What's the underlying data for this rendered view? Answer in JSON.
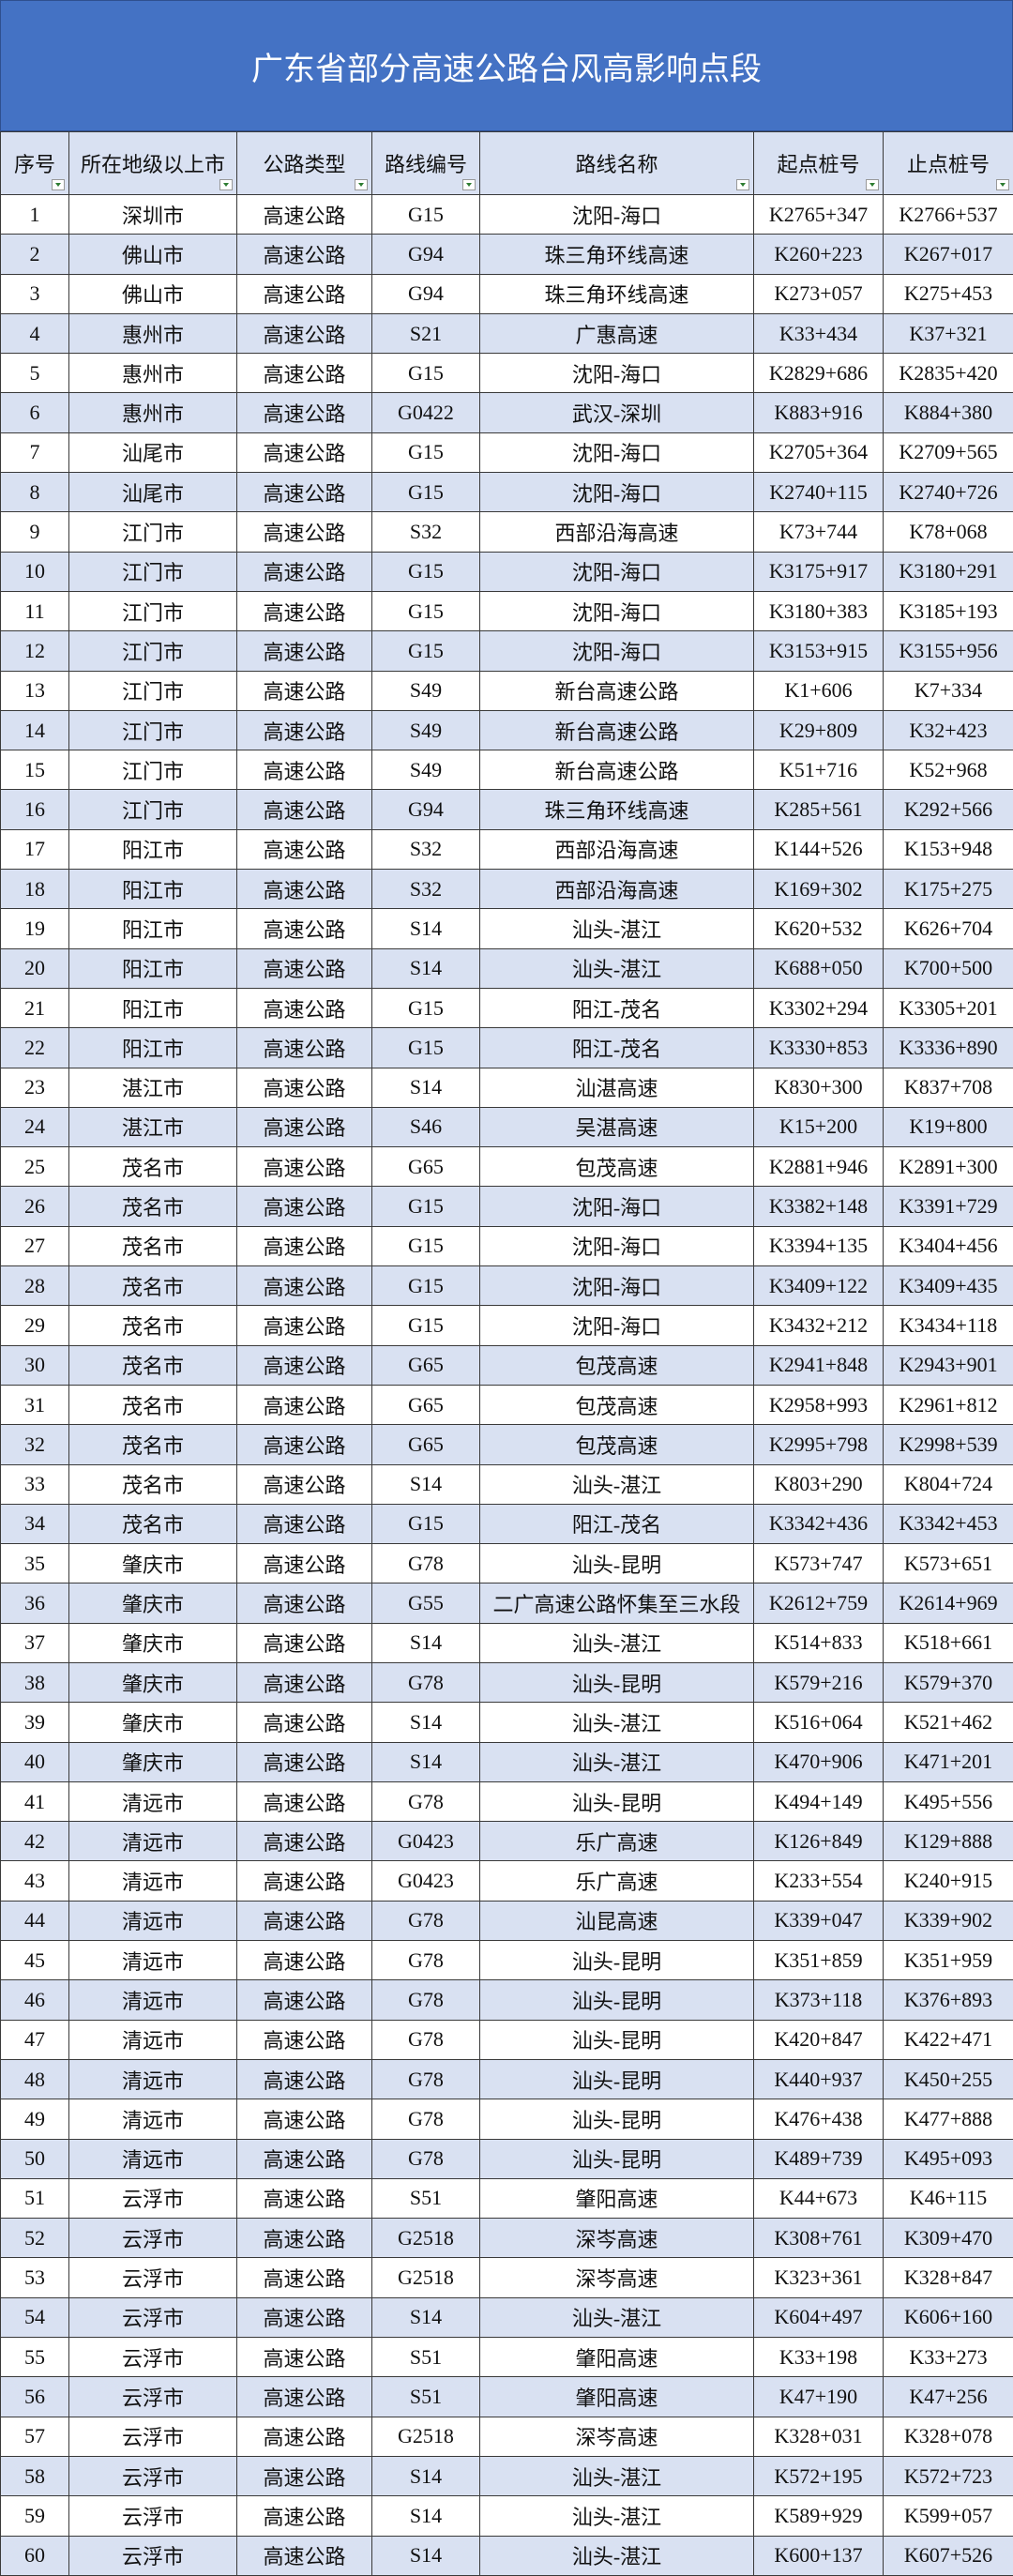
{
  "header": {
    "title": "广东省部分高速公路台风高影响点段"
  },
  "table": {
    "headers": [
      "序号",
      "所在地级以上市",
      "公路类型",
      "路线编号",
      "路线名称",
      "起点桩号",
      "止点桩号"
    ],
    "rows": [
      [
        "1",
        "深圳市",
        "高速公路",
        "G15",
        "沈阳-海口",
        "K2765+347",
        "K2766+537"
      ],
      [
        "2",
        "佛山市",
        "高速公路",
        "G94",
        "珠三角环线高速",
        "K260+223",
        "K267+017"
      ],
      [
        "3",
        "佛山市",
        "高速公路",
        "G94",
        "珠三角环线高速",
        "K273+057",
        "K275+453"
      ],
      [
        "4",
        "惠州市",
        "高速公路",
        "S21",
        "广惠高速",
        "K33+434",
        "K37+321"
      ],
      [
        "5",
        "惠州市",
        "高速公路",
        "G15",
        "沈阳-海口",
        "K2829+686",
        "K2835+420"
      ],
      [
        "6",
        "惠州市",
        "高速公路",
        "G0422",
        "武汉-深圳",
        "K883+916",
        "K884+380"
      ],
      [
        "7",
        "汕尾市",
        "高速公路",
        "G15",
        "沈阳-海口",
        "K2705+364",
        "K2709+565"
      ],
      [
        "8",
        "汕尾市",
        "高速公路",
        "G15",
        "沈阳-海口",
        "K2740+115",
        "K2740+726"
      ],
      [
        "9",
        "江门市",
        "高速公路",
        "S32",
        "西部沿海高速",
        "K73+744",
        "K78+068"
      ],
      [
        "10",
        "江门市",
        "高速公路",
        "G15",
        "沈阳-海口",
        "K3175+917",
        "K3180+291"
      ],
      [
        "11",
        "江门市",
        "高速公路",
        "G15",
        "沈阳-海口",
        "K3180+383",
        "K3185+193"
      ],
      [
        "12",
        "江门市",
        "高速公路",
        "G15",
        "沈阳-海口",
        "K3153+915",
        "K3155+956"
      ],
      [
        "13",
        "江门市",
        "高速公路",
        "S49",
        "新台高速公路",
        "K1+606",
        "K7+334"
      ],
      [
        "14",
        "江门市",
        "高速公路",
        "S49",
        "新台高速公路",
        "K29+809",
        "K32+423"
      ],
      [
        "15",
        "江门市",
        "高速公路",
        "S49",
        "新台高速公路",
        "K51+716",
        "K52+968"
      ],
      [
        "16",
        "江门市",
        "高速公路",
        "G94",
        "珠三角环线高速",
        "K285+561",
        "K292+566"
      ],
      [
        "17",
        "阳江市",
        "高速公路",
        "S32",
        "西部沿海高速",
        "K144+526",
        "K153+948"
      ],
      [
        "18",
        "阳江市",
        "高速公路",
        "S32",
        "西部沿海高速",
        "K169+302",
        "K175+275"
      ],
      [
        "19",
        "阳江市",
        "高速公路",
        "S14",
        "汕头-湛江",
        "K620+532",
        "K626+704"
      ],
      [
        "20",
        "阳江市",
        "高速公路",
        "S14",
        "汕头-湛江",
        "K688+050",
        "K700+500"
      ],
      [
        "21",
        "阳江市",
        "高速公路",
        "G15",
        "阳江-茂名",
        "K3302+294",
        "K3305+201"
      ],
      [
        "22",
        "阳江市",
        "高速公路",
        "G15",
        "阳江-茂名",
        "K3330+853",
        "K3336+890"
      ],
      [
        "23",
        "湛江市",
        "高速公路",
        "S14",
        "汕湛高速",
        "K830+300",
        "K837+708"
      ],
      [
        "24",
        "湛江市",
        "高速公路",
        "S46",
        "吴湛高速",
        "K15+200",
        "K19+800"
      ],
      [
        "25",
        "茂名市",
        "高速公路",
        "G65",
        "包茂高速",
        "K2881+946",
        "K2891+300"
      ],
      [
        "26",
        "茂名市",
        "高速公路",
        "G15",
        "沈阳-海口",
        "K3382+148",
        "K3391+729"
      ],
      [
        "27",
        "茂名市",
        "高速公路",
        "G15",
        "沈阳-海口",
        "K3394+135",
        "K3404+456"
      ],
      [
        "28",
        "茂名市",
        "高速公路",
        "G15",
        "沈阳-海口",
        "K3409+122",
        "K3409+435"
      ],
      [
        "29",
        "茂名市",
        "高速公路",
        "G15",
        "沈阳-海口",
        "K3432+212",
        "K3434+118"
      ],
      [
        "30",
        "茂名市",
        "高速公路",
        "G65",
        "包茂高速",
        "K2941+848",
        "K2943+901"
      ],
      [
        "31",
        "茂名市",
        "高速公路",
        "G65",
        "包茂高速",
        "K2958+993",
        "K2961+812"
      ],
      [
        "32",
        "茂名市",
        "高速公路",
        "G65",
        "包茂高速",
        "K2995+798",
        "K2998+539"
      ],
      [
        "33",
        "茂名市",
        "高速公路",
        "S14",
        "汕头-湛江",
        "K803+290",
        "K804+724"
      ],
      [
        "34",
        "茂名市",
        "高速公路",
        "G15",
        "阳江-茂名",
        "K3342+436",
        "K3342+453"
      ],
      [
        "35",
        "肇庆市",
        "高速公路",
        "G78",
        "汕头-昆明",
        "K573+747",
        "K573+651"
      ],
      [
        "36",
        "肇庆市",
        "高速公路",
        "G55",
        "二广高速公路怀集至三水段",
        "K2612+759",
        "K2614+969"
      ],
      [
        "37",
        "肇庆市",
        "高速公路",
        "S14",
        "汕头-湛江",
        "K514+833",
        "K518+661"
      ],
      [
        "38",
        "肇庆市",
        "高速公路",
        "G78",
        "汕头-昆明",
        "K579+216",
        "K579+370"
      ],
      [
        "39",
        "肇庆市",
        "高速公路",
        "S14",
        "汕头-湛江",
        "K516+064",
        "K521+462"
      ],
      [
        "40",
        "肇庆市",
        "高速公路",
        "S14",
        "汕头-湛江",
        "K470+906",
        "K471+201"
      ],
      [
        "41",
        "清远市",
        "高速公路",
        "G78",
        "汕头-昆明",
        "K494+149",
        "K495+556"
      ],
      [
        "42",
        "清远市",
        "高速公路",
        "G0423",
        "乐广高速",
        "K126+849",
        "K129+888"
      ],
      [
        "43",
        "清远市",
        "高速公路",
        "G0423",
        "乐广高速",
        "K233+554",
        "K240+915"
      ],
      [
        "44",
        "清远市",
        "高速公路",
        "G78",
        "汕昆高速",
        "K339+047",
        "K339+902"
      ],
      [
        "45",
        "清远市",
        "高速公路",
        "G78",
        "汕头-昆明",
        "K351+859",
        "K351+959"
      ],
      [
        "46",
        "清远市",
        "高速公路",
        "G78",
        "汕头-昆明",
        "K373+118",
        "K376+893"
      ],
      [
        "47",
        "清远市",
        "高速公路",
        "G78",
        "汕头-昆明",
        "K420+847",
        "K422+471"
      ],
      [
        "48",
        "清远市",
        "高速公路",
        "G78",
        "汕头-昆明",
        "K440+937",
        "K450+255"
      ],
      [
        "49",
        "清远市",
        "高速公路",
        "G78",
        "汕头-昆明",
        "K476+438",
        "K477+888"
      ],
      [
        "50",
        "清远市",
        "高速公路",
        "G78",
        "汕头-昆明",
        "K489+739",
        "K495+093"
      ],
      [
        "51",
        "云浮市",
        "高速公路",
        "S51",
        "肇阳高速",
        "K44+673",
        "K46+115"
      ],
      [
        "52",
        "云浮市",
        "高速公路",
        "G2518",
        "深岑高速",
        "K308+761",
        "K309+470"
      ],
      [
        "53",
        "云浮市",
        "高速公路",
        "G2518",
        "深岑高速",
        "K323+361",
        "K328+847"
      ],
      [
        "54",
        "云浮市",
        "高速公路",
        "S14",
        "汕头-湛江",
        "K604+497",
        "K606+160"
      ],
      [
        "55",
        "云浮市",
        "高速公路",
        "S51",
        "肇阳高速",
        "K33+198",
        "K33+273"
      ],
      [
        "56",
        "云浮市",
        "高速公路",
        "S51",
        "肇阳高速",
        "K47+190",
        "K47+256"
      ],
      [
        "57",
        "云浮市",
        "高速公路",
        "G2518",
        "深岑高速",
        "K328+031",
        "K328+078"
      ],
      [
        "58",
        "云浮市",
        "高速公路",
        "S14",
        "汕头-湛江",
        "K572+195",
        "K572+723"
      ],
      [
        "59",
        "云浮市",
        "高速公路",
        "S14",
        "汕头-湛江",
        "K589+929",
        "K599+057"
      ],
      [
        "60",
        "云浮市",
        "高速公路",
        "S14",
        "汕头-湛江",
        "K600+137",
        "K607+526"
      ]
    ]
  }
}
